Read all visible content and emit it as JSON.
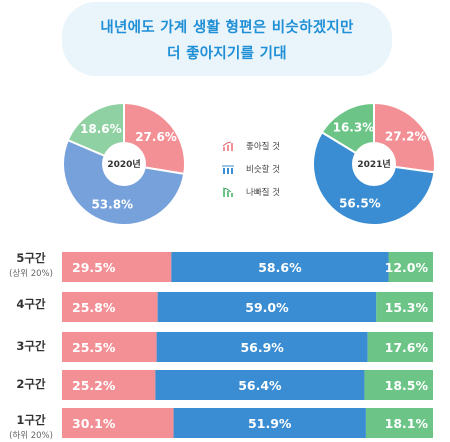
{
  "title": {
    "line1": "내년에도 가계 생활 형편은 비슷하겠지만",
    "line2": "더 좋아지기를 기대"
  },
  "colors": {
    "better": "#f39096",
    "same": "#3a8dd2",
    "worse": "#6cc587",
    "pie_2020_same": "#76a1db",
    "pie_2020_worse": "#8fd1a2",
    "title_bg": "#eaf4fb",
    "title_text": "#1f8fd6"
  },
  "legend": [
    {
      "label": "좋아질 것",
      "icon": "trend-up-icon"
    },
    {
      "label": "비슷할 것",
      "icon": "steady-bars-icon"
    },
    {
      "label": "나빠질 것",
      "icon": "trend-down-icon"
    }
  ],
  "chart_data": [
    {
      "type": "pie",
      "center_label": "2020년",
      "slices": [
        {
          "label": "좋아질 것",
          "value": 27.6
        },
        {
          "label": "비슷할 것",
          "value": 53.8
        },
        {
          "label": "나빠질 것",
          "value": 18.6
        }
      ]
    },
    {
      "type": "pie",
      "center_label": "2021년",
      "slices": [
        {
          "label": "좋아질 것",
          "value": 27.2
        },
        {
          "label": "비슷할 것",
          "value": 56.5
        },
        {
          "label": "나빠질 것",
          "value": 16.3
        }
      ]
    },
    {
      "type": "bar",
      "orientation": "horizontal",
      "stacked": true,
      "categories": [
        {
          "label": "5구간",
          "sub": "(상위 20%)"
        },
        {
          "label": "4구간",
          "sub": ""
        },
        {
          "label": "3구간",
          "sub": ""
        },
        {
          "label": "2구간",
          "sub": ""
        },
        {
          "label": "1구간",
          "sub": "(하위 20%)"
        }
      ],
      "series": [
        {
          "name": "좋아질 것",
          "values": [
            29.5,
            25.8,
            25.5,
            25.2,
            30.1
          ]
        },
        {
          "name": "비슷할 것",
          "values": [
            58.6,
            59.0,
            56.9,
            56.4,
            51.9
          ]
        },
        {
          "name": "나빠질 것",
          "values": [
            12.0,
            15.3,
            17.6,
            18.5,
            18.1
          ]
        }
      ],
      "value_suffix": "%"
    }
  ]
}
